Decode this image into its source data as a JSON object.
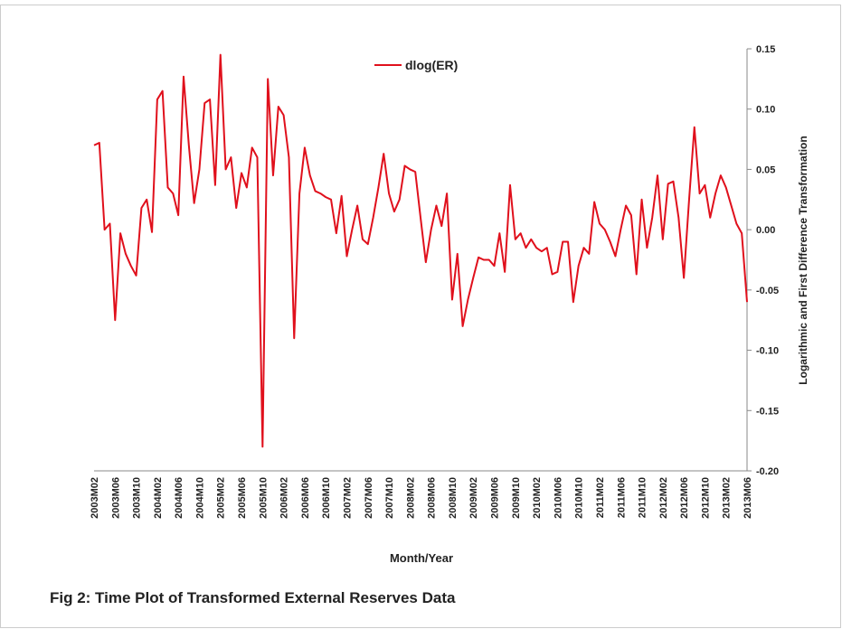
{
  "chart_data": {
    "type": "line",
    "x_label": "Month/Year",
    "y_label": "Logarithmic and First Difference Transformation",
    "caption": "Fig 2: Time Plot of Transformed External Reserves Data",
    "legend": "top",
    "categories": [
      "2003M02",
      null,
      null,
      null,
      "2003M06",
      null,
      null,
      null,
      "2003M10",
      null,
      null,
      null,
      "2004M02",
      null,
      null,
      null,
      "2004M06",
      null,
      null,
      null,
      "2004M10",
      null,
      null,
      null,
      "2005M02",
      null,
      null,
      null,
      "2005M06",
      null,
      null,
      null,
      "2005M10",
      null,
      null,
      null,
      "2006M02",
      null,
      null,
      null,
      "2006M06",
      null,
      null,
      null,
      "2006M10",
      null,
      null,
      null,
      "2007M02",
      null,
      null,
      null,
      "2007M06",
      null,
      null,
      null,
      "2007M10",
      null,
      null,
      null,
      "2008M02",
      null,
      null,
      null,
      "2008M06",
      null,
      null,
      null,
      "2008M10",
      null,
      null,
      null,
      "2009M02",
      null,
      null,
      null,
      "2009M06",
      null,
      null,
      null,
      "2009M10",
      null,
      null,
      null,
      "2010M02",
      null,
      null,
      null,
      "2010M06",
      null,
      null,
      null,
      "2010M10",
      null,
      null,
      null,
      "2011M02",
      null,
      null,
      null,
      "2011M06",
      null,
      null,
      null,
      "2011M10",
      null,
      null,
      null,
      "2012M02",
      null,
      null,
      null,
      "2012M06",
      null,
      null,
      null,
      "2012M10",
      null,
      null,
      null,
      "2013M02",
      null,
      null,
      null,
      "2013M06"
    ],
    "series": [
      {
        "name": "dlog(ER)",
        "color": "#e0101c",
        "values": [
          0.07,
          0.072,
          0.0,
          0.005,
          -0.075,
          -0.003,
          -0.02,
          -0.03,
          -0.038,
          0.018,
          0.025,
          -0.002,
          0.108,
          0.115,
          0.035,
          0.03,
          0.012,
          0.127,
          0.07,
          0.022,
          0.05,
          0.105,
          0.108,
          0.037,
          0.145,
          0.05,
          0.06,
          0.018,
          0.047,
          0.035,
          0.068,
          0.06,
          -0.18,
          0.125,
          0.045,
          0.102,
          0.095,
          0.06,
          -0.09,
          0.03,
          0.068,
          0.045,
          0.032,
          0.03,
          0.027,
          0.025,
          -0.003,
          0.028,
          -0.022,
          0.0,
          0.02,
          -0.008,
          -0.012,
          0.01,
          0.035,
          0.063,
          0.03,
          0.015,
          0.025,
          0.053,
          0.05,
          0.048,
          0.01,
          -0.027,
          0.0,
          0.02,
          0.003,
          0.03,
          -0.058,
          -0.02,
          -0.08,
          -0.058,
          -0.04,
          -0.023,
          -0.025,
          -0.025,
          -0.03,
          -0.003,
          -0.035,
          0.037,
          -0.008,
          -0.003,
          -0.015,
          -0.008,
          -0.015,
          -0.018,
          -0.015,
          -0.037,
          -0.035,
          -0.01,
          -0.01,
          -0.06,
          -0.03,
          -0.015,
          -0.02,
          0.023,
          0.005,
          0.0,
          -0.01,
          -0.022,
          0.0,
          0.02,
          0.012,
          -0.037,
          0.025,
          -0.015,
          0.01,
          0.045,
          -0.008,
          0.038,
          0.04,
          0.01,
          -0.04,
          0.025,
          0.085,
          0.03,
          0.037,
          0.01,
          0.03,
          0.045,
          0.035,
          0.02,
          0.005,
          -0.003,
          -0.06
        ]
      }
    ],
    "ylim": [
      -0.2,
      0.15
    ],
    "yticks": [
      0.15,
      {
        "value": 0.1,
        "label": "0.10"
      },
      0.05,
      {
        "value": 0,
        "label": "0.00"
      },
      -0.05,
      {
        "value": -0.1,
        "label": "-0.10"
      },
      -0.15,
      {
        "value": -0.2,
        "label": "-0.20"
      }
    ]
  }
}
